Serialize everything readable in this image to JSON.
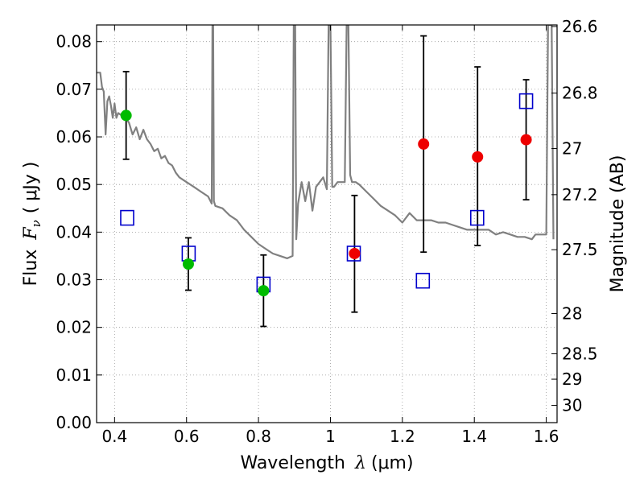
{
  "chart_data": {
    "type": "scatter",
    "xlabel": "Wavelength",
    "xlabel_symbol": "λ",
    "xlabel_units": "(μm)",
    "ylabel": "Flux",
    "ylabel_symbol": "F",
    "ylabel_subscript": "ν",
    "ylabel_units": "( μJy )",
    "y2label": "Magnitude (AB)",
    "xlim": [
      0.35,
      1.63
    ],
    "ylim": [
      0.0,
      0.0835
    ],
    "grid": true,
    "x_ticks": [
      0.4,
      0.6,
      0.8,
      1.0,
      1.2,
      1.4,
      1.6
    ],
    "x_tick_labels": [
      "0.4",
      "0.6",
      "0.8",
      "1",
      "1.2",
      "1.4",
      "1.6"
    ],
    "y_ticks": [
      0.0,
      0.01,
      0.02,
      0.03,
      0.04,
      0.05,
      0.06,
      0.07,
      0.08
    ],
    "y_tick_labels": [
      "0.00",
      "0.01",
      "0.02",
      "0.03",
      "0.04",
      "0.05",
      "0.06",
      "0.07",
      "0.08"
    ],
    "y2_tick_labels": [
      "26.6",
      "26.8",
      "27",
      "27.2",
      "27.5",
      "28",
      "28.5",
      "29",
      "30"
    ],
    "colors": {
      "template": "#808080",
      "green": "#00bb00",
      "red": "#ee0000",
      "model": "#0000cc",
      "errorbar": "#000000",
      "grid": "#999999"
    },
    "series": [
      {
        "name": "Observed (green)",
        "x": [
          0.432,
          0.605,
          0.814
        ],
        "y": [
          0.0645,
          0.0333,
          0.0277
        ],
        "yerr_low": [
          0.0553,
          0.0278,
          0.0202
        ],
        "yerr_high": [
          0.0737,
          0.0388,
          0.0352
        ]
      },
      {
        "name": "Observed (red)",
        "x": [
          1.067,
          1.259,
          1.409,
          1.544
        ],
        "y": [
          0.0355,
          0.0585,
          0.0558,
          0.0594
        ],
        "yerr_low": [
          0.0232,
          0.0358,
          0.0372,
          0.0468
        ],
        "yerr_high": [
          0.0477,
          0.0812,
          0.0747,
          0.072
        ]
      },
      {
        "name": "Model photometry",
        "x": [
          0.435,
          0.606,
          0.814,
          1.065,
          1.257,
          1.408,
          1.544
        ],
        "y": [
          0.043,
          0.0355,
          0.029,
          0.0355,
          0.0298,
          0.043,
          0.0675
        ]
      },
      {
        "name": "SED template",
        "x": [
          0.35,
          0.36,
          0.365,
          0.37,
          0.375,
          0.38,
          0.385,
          0.39,
          0.395,
          0.4,
          0.405,
          0.41,
          0.42,
          0.43,
          0.44,
          0.45,
          0.46,
          0.47,
          0.48,
          0.49,
          0.5,
          0.51,
          0.52,
          0.53,
          0.54,
          0.55,
          0.56,
          0.57,
          0.58,
          0.59,
          0.6,
          0.62,
          0.64,
          0.66,
          0.67,
          0.672,
          0.674,
          0.676,
          0.68,
          0.7,
          0.72,
          0.74,
          0.76,
          0.78,
          0.8,
          0.82,
          0.84,
          0.86,
          0.88,
          0.895,
          0.898,
          0.9,
          0.902,
          0.905,
          0.91,
          0.92,
          0.93,
          0.94,
          0.95,
          0.96,
          0.97,
          0.98,
          0.99,
          0.995,
          1.0,
          1.005,
          1.01,
          1.02,
          1.04,
          1.045,
          1.05,
          1.055,
          1.06,
          1.07,
          1.08,
          1.1,
          1.12,
          1.14,
          1.16,
          1.18,
          1.2,
          1.22,
          1.24,
          1.26,
          1.28,
          1.3,
          1.32,
          1.34,
          1.36,
          1.38,
          1.4,
          1.42,
          1.44,
          1.46,
          1.48,
          1.5,
          1.52,
          1.54,
          1.56,
          1.57,
          1.575,
          1.58,
          1.585,
          1.59,
          1.595,
          1.6,
          1.605,
          1.61,
          1.615,
          1.62
        ],
        "y": [
          0.0735,
          0.0735,
          0.0705,
          0.0695,
          0.0605,
          0.0675,
          0.0685,
          0.0665,
          0.064,
          0.067,
          0.064,
          0.065,
          0.0645,
          0.064,
          0.063,
          0.0605,
          0.062,
          0.0595,
          0.0615,
          0.0595,
          0.0585,
          0.057,
          0.0575,
          0.0555,
          0.056,
          0.0545,
          0.054,
          0.0525,
          0.0515,
          0.051,
          0.0505,
          0.0495,
          0.0485,
          0.0475,
          0.046,
          0.0835,
          0.0835,
          0.0465,
          0.0455,
          0.045,
          0.0435,
          0.0425,
          0.0405,
          0.039,
          0.0375,
          0.0365,
          0.0355,
          0.035,
          0.0345,
          0.035,
          0.0835,
          0.0835,
          0.0835,
          0.0385,
          0.046,
          0.0505,
          0.0465,
          0.0505,
          0.0445,
          0.0495,
          0.0505,
          0.0515,
          0.049,
          0.0835,
          0.0835,
          0.0495,
          0.0495,
          0.0505,
          0.0505,
          0.0835,
          0.0835,
          0.052,
          0.0505,
          0.0505,
          0.05,
          0.0485,
          0.047,
          0.0455,
          0.0445,
          0.0435,
          0.042,
          0.044,
          0.0425,
          0.0425,
          0.0425,
          0.042,
          0.042,
          0.0415,
          0.041,
          0.0405,
          0.0405,
          0.0405,
          0.0405,
          0.0395,
          0.04,
          0.0395,
          0.039,
          0.039,
          0.0385,
          0.0395,
          0.0395,
          0.0395,
          0.0395,
          0.0395,
          0.0395,
          0.0395,
          0.0835,
          0.0835,
          0.0835,
          0.0385
        ]
      }
    ]
  }
}
